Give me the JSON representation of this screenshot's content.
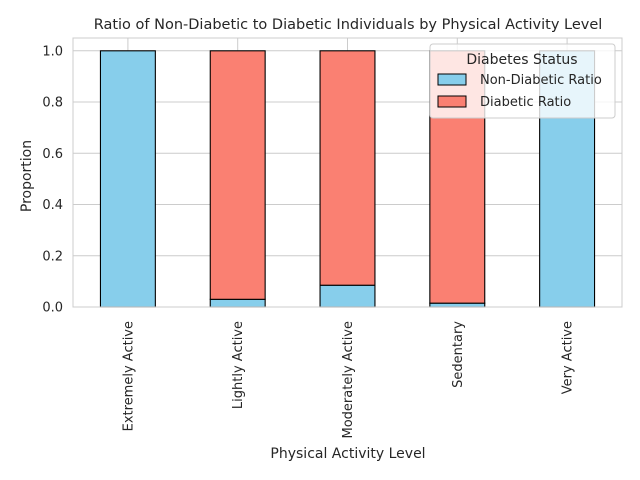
{
  "chart_data": {
    "type": "bar",
    "stacked": true,
    "title": "Ratio of Non-Diabetic to Diabetic Individuals by Physical Activity Level",
    "xlabel": "Physical Activity Level",
    "ylabel": "Proportion",
    "ylim": [
      0,
      1.05
    ],
    "yticks": [
      "0.0",
      "0.2",
      "0.4",
      "0.6",
      "0.8",
      "1.0"
    ],
    "categories": [
      "Extremely Active",
      "Lightly Active",
      "Moderately Active",
      "Sedentary",
      "Very Active"
    ],
    "series": [
      {
        "name": "Non-Diabetic Ratio",
        "color": "#87ceeb",
        "values": [
          1.0,
          0.03,
          0.085,
          0.015,
          1.0
        ]
      },
      {
        "name": "Diabetic Ratio",
        "color": "#fa8072",
        "values": [
          0.0,
          0.97,
          0.915,
          0.985,
          0.0
        ]
      }
    ],
    "legend": {
      "title": "Diabetes Status",
      "placement": "top-right"
    },
    "grid": true
  }
}
